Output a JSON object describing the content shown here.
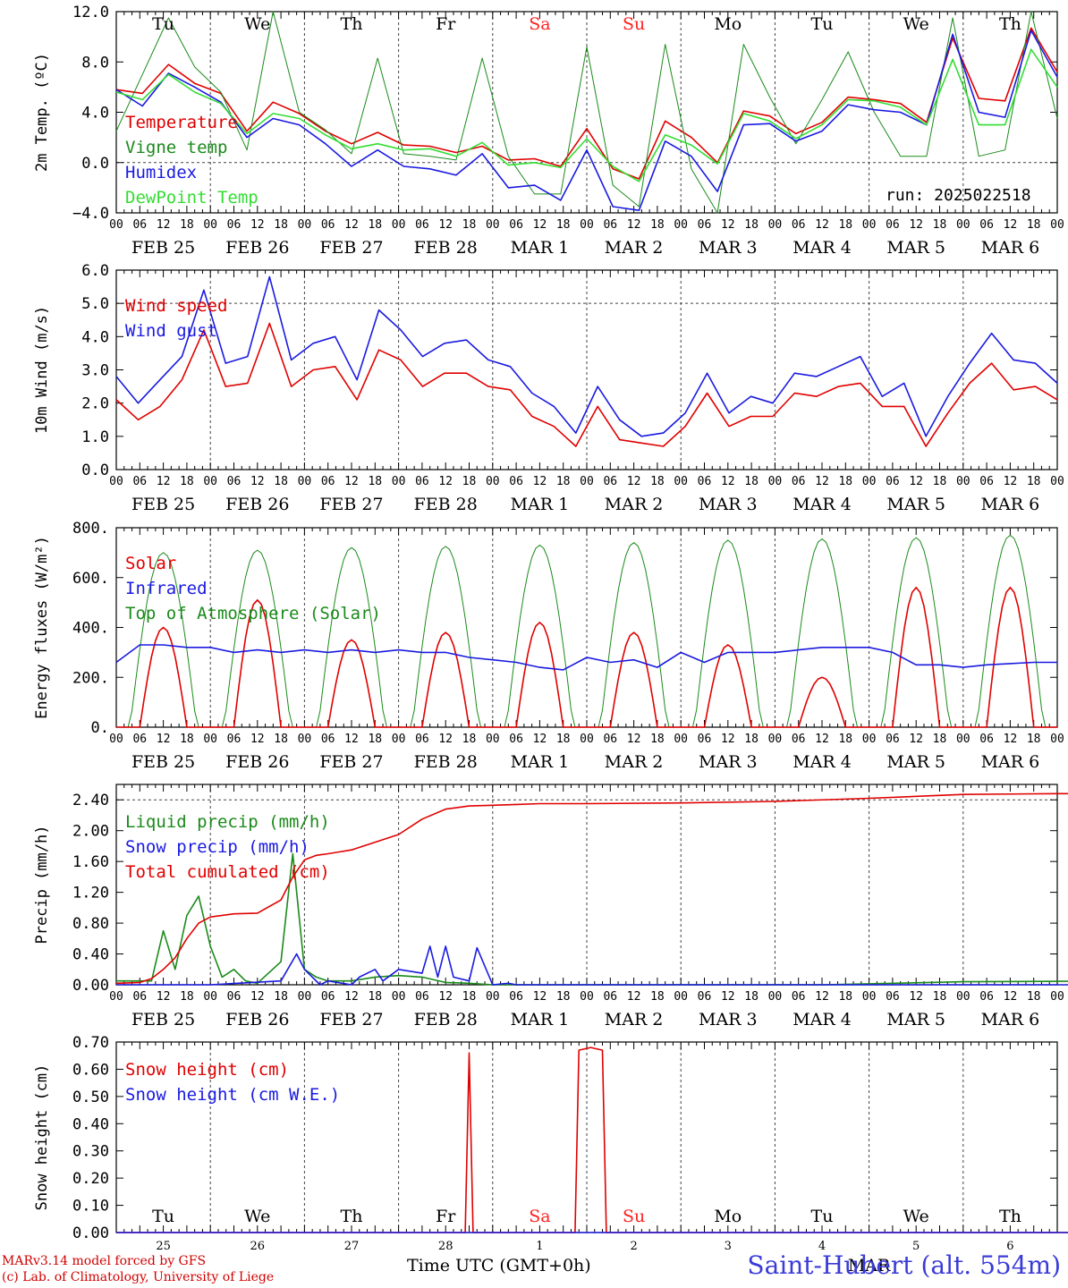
{
  "colors": {
    "red": "#e00000",
    "green": "#1a8a1a",
    "blue": "#1a1ae0",
    "lightgreen": "#33dd33",
    "weekend": "#ff2020",
    "station": "#3a3ad8"
  },
  "x_axis": {
    "hour_ticks": [
      "00",
      "06",
      "12",
      "18"
    ],
    "final_tick": "00",
    "dates": [
      "FEB 25",
      "FEB 26",
      "FEB 27",
      "FEB 28",
      "MAR  1",
      "MAR  2",
      "MAR  3",
      "MAR  4",
      "MAR  5",
      "MAR  6"
    ],
    "weekdays": [
      "Tu",
      "We",
      "Th",
      "Fr",
      "Sa",
      "Su",
      "Mo",
      "Tu",
      "We",
      "Th"
    ],
    "weekday_weekend": [
      false,
      false,
      false,
      false,
      true,
      true,
      false,
      false,
      false,
      false
    ],
    "day_numbers": [
      "25",
      "26",
      "27",
      "28",
      "1",
      "2",
      "3",
      "4",
      "5",
      "6"
    ],
    "month_label": "MAR",
    "title": "Time UTC (GMT+0h)"
  },
  "run_label": "run: 2025022518",
  "footer": {
    "line1": "MARv3.14 model forced by GFS",
    "line2": "(c) Lab. of Climatology, University of Liege",
    "station": "Saint-Hubert (alt. 554m)"
  },
  "chart_data": [
    {
      "type": "line",
      "ylabel": "2m Temp. (ºC)",
      "ylim": [
        -4,
        12
      ],
      "yticks": [
        "−4.0",
        "0.0",
        "4.0",
        "8.0",
        "12.0"
      ],
      "ytick_values": [
        -4,
        0,
        4,
        8,
        12
      ],
      "dashed_y": [
        0
      ],
      "x_unit": "hours since FEB 25 00 UTC, 6-hourly",
      "series": [
        {
          "name": "Temperature",
          "color": "red",
          "values": [
            5.8,
            5.5,
            7.8,
            6.3,
            5.5,
            2.5,
            4.8,
            3.9,
            2.5,
            1.5,
            2.4,
            1.4,
            1.3,
            0.8,
            1.3,
            0.2,
            0.3,
            -0.3,
            2.7,
            -0.5,
            -1.3,
            3.3,
            2.0,
            0.0,
            4.1,
            3.7,
            2.3,
            3.2,
            5.2,
            5.0,
            4.7,
            3.2,
            9.9,
            5.1,
            4.9,
            10.7,
            7.2
          ]
        },
        {
          "name": "Vigne temp",
          "color": "green",
          "values": [
            2.5,
            7.0,
            11.5,
            7.6,
            5.6,
            1.0,
            12.0,
            4.0,
            2.6,
            0.7,
            8.3,
            0.7,
            0.5,
            0.2,
            8.3,
            0.5,
            -2.5,
            -2.5,
            9.2,
            -1.8,
            -3.5,
            9.4,
            -0.5,
            -4.0,
            9.4,
            5.2,
            1.5,
            5.0,
            8.8,
            4.0,
            0.5,
            0.5,
            11.5,
            0.5,
            1.0,
            12.0,
            3.5
          ]
        },
        {
          "name": "Humidex",
          "color": "blue",
          "values": [
            5.8,
            4.5,
            7.1,
            6.0,
            4.8,
            2.0,
            3.5,
            3.0,
            1.5,
            -0.3,
            1.0,
            -0.3,
            -0.5,
            -1.0,
            0.7,
            -2.0,
            -1.8,
            -3.0,
            1.0,
            -3.5,
            -3.8,
            1.7,
            0.5,
            -2.3,
            3.0,
            3.1,
            1.7,
            2.5,
            4.6,
            4.2,
            4.0,
            3.0,
            10.2,
            4.0,
            3.6,
            10.5,
            6.8
          ]
        },
        {
          "name": "DewPoint Temp",
          "color": "lightgreen",
          "values": [
            5.6,
            5.0,
            7.0,
            5.6,
            4.7,
            2.3,
            3.9,
            3.5,
            2.2,
            1.1,
            1.5,
            1.0,
            1.1,
            0.5,
            1.6,
            -0.2,
            0.0,
            -0.4,
            1.9,
            -0.3,
            -1.5,
            2.2,
            1.4,
            -0.1,
            3.9,
            3.3,
            1.9,
            3.0,
            5.0,
            4.9,
            4.4,
            3.0,
            8.2,
            3.0,
            3.0,
            9.0,
            6.0
          ]
        }
      ],
      "legend": [
        "Temperature",
        "Vigne temp",
        "Humidex",
        "DewPoint Temp"
      ],
      "legend_colors": [
        "red",
        "green",
        "blue",
        "lightgreen"
      ]
    },
    {
      "type": "line",
      "ylabel": "10m Wind (m/s)",
      "ylim": [
        0,
        6
      ],
      "yticks": [
        "0.0",
        "1.0",
        "2.0",
        "3.0",
        "4.0",
        "5.0",
        "6.0"
      ],
      "ytick_values": [
        0,
        1,
        2,
        3,
        4,
        5,
        6
      ],
      "dashed_y": [
        5
      ],
      "x_unit": "hours since FEB 25 00 UTC, 6-hourly",
      "series": [
        {
          "name": "Wind speed",
          "color": "red",
          "values": [
            2.1,
            1.5,
            1.9,
            2.7,
            4.2,
            2.5,
            2.6,
            4.4,
            2.5,
            3.0,
            3.1,
            2.1,
            3.6,
            3.3,
            2.5,
            2.9,
            2.9,
            2.5,
            2.4,
            1.6,
            1.3,
            0.7,
            1.9,
            0.9,
            0.8,
            0.7,
            1.3,
            2.3,
            1.3,
            1.6,
            1.6,
            2.3,
            2.2,
            2.5,
            2.6,
            1.9,
            1.9,
            0.7,
            1.7,
            2.6,
            3.2,
            2.4,
            2.5,
            2.1
          ]
        },
        {
          "name": "Wind gust",
          "color": "blue",
          "values": [
            2.8,
            2.0,
            2.7,
            3.4,
            5.4,
            3.2,
            3.4,
            5.8,
            3.3,
            3.8,
            4.0,
            2.7,
            4.8,
            4.2,
            3.4,
            3.8,
            3.9,
            3.3,
            3.1,
            2.3,
            1.9,
            1.1,
            2.5,
            1.5,
            1.0,
            1.1,
            1.7,
            2.9,
            1.7,
            2.2,
            2.0,
            2.9,
            2.8,
            3.1,
            3.4,
            2.2,
            2.6,
            1.0,
            2.2,
            3.2,
            4.1,
            3.3,
            3.2,
            2.6
          ]
        }
      ],
      "legend": [
        "Wind speed",
        "Wind gust"
      ],
      "legend_colors": [
        "red",
        "blue"
      ]
    },
    {
      "type": "line",
      "ylabel": "Energy fluxes (W/m²)",
      "ylim": [
        0,
        800
      ],
      "yticks": [
        "0.",
        "200.",
        "400.",
        "600.",
        "800."
      ],
      "ytick_values": [
        0,
        200,
        400,
        600,
        800
      ],
      "dashed_y": [],
      "daily_peaks": {
        "solar": [
          400,
          510,
          350,
          380,
          420,
          380,
          330,
          200,
          560,
          560
        ],
        "top_of_atmosphere": [
          700,
          710,
          720,
          725,
          730,
          740,
          750,
          755,
          760,
          770
        ]
      },
      "infrared_6h": [
        260,
        330,
        330,
        320,
        320,
        300,
        310,
        300,
        310,
        300,
        310,
        300,
        310,
        300,
        300,
        280,
        270,
        260,
        240,
        230,
        280,
        260,
        270,
        240,
        300,
        260,
        300,
        300,
        300,
        310,
        320,
        320,
        320,
        300,
        250,
        250,
        240,
        250,
        255,
        260,
        260
      ],
      "legend": [
        "Solar",
        "Infrared",
        "Top of Atmosphere (Solar)"
      ],
      "legend_colors": [
        "red",
        "blue",
        "green"
      ]
    },
    {
      "type": "line",
      "ylabel": "Precip (mm/h)",
      "ylim": [
        0,
        2.6
      ],
      "yticks": [
        "0.00",
        "0.40",
        "0.80",
        "1.20",
        "1.60",
        "2.00",
        "2.40"
      ],
      "ytick_values": [
        0,
        0.4,
        0.8,
        1.2,
        1.6,
        2.0,
        2.4
      ],
      "dashed_y": [
        2.4
      ],
      "series": [
        {
          "name": "Liquid precip (mm/h)",
          "color": "green",
          "x": [
            0,
            6,
            9,
            12,
            15,
            18,
            21,
            24,
            27,
            30,
            33,
            36,
            42,
            45,
            48,
            51,
            54,
            60,
            66,
            72,
            78,
            84,
            90,
            96,
            102,
            108,
            114,
            120,
            180,
            216,
            260,
            300
          ],
          "values": [
            0.05,
            0.05,
            0.05,
            0.7,
            0.2,
            0.9,
            1.15,
            0.5,
            0.1,
            0.2,
            0.05,
            0.02,
            0.3,
            1.7,
            0.2,
            0.1,
            0.05,
            0.05,
            0.1,
            0.12,
            0.1,
            0.03,
            0.02,
            0.0,
            0.0,
            0.0,
            0.0,
            0.0,
            0.0,
            0.04,
            0.05,
            0.0
          ]
        },
        {
          "name": "Snow precip (mm/h)",
          "color": "blue",
          "x": [
            0,
            24,
            42,
            46,
            48,
            52,
            54,
            60,
            62,
            66,
            68,
            72,
            78,
            80,
            82,
            84,
            86,
            90,
            92,
            96,
            100,
            102,
            108,
            114,
            120,
            200,
            300
          ],
          "values": [
            0.0,
            0.0,
            0.05,
            0.4,
            0.2,
            0.0,
            0.05,
            0.0,
            0.1,
            0.2,
            0.05,
            0.2,
            0.15,
            0.5,
            0.1,
            0.5,
            0.1,
            0.05,
            0.48,
            0.0,
            0.02,
            0.0,
            0.0,
            0.0,
            0.0,
            0.0,
            0.0
          ]
        },
        {
          "name": "Total cumulated (cm)",
          "color": "red",
          "x": [
            0,
            6,
            9,
            12,
            15,
            18,
            21,
            24,
            30,
            36,
            42,
            45,
            48,
            51,
            54,
            60,
            66,
            72,
            78,
            84,
            90,
            96,
            102,
            108,
            120,
            144,
            168,
            192,
            216,
            240,
            264,
            288
          ],
          "values": [
            0.02,
            0.03,
            0.08,
            0.2,
            0.35,
            0.6,
            0.8,
            0.88,
            0.92,
            0.93,
            1.1,
            1.4,
            1.62,
            1.68,
            1.7,
            1.75,
            1.85,
            1.95,
            2.15,
            2.28,
            2.32,
            2.33,
            2.34,
            2.35,
            2.35,
            2.36,
            2.38,
            2.42,
            2.47,
            2.48,
            2.48,
            2.48
          ]
        }
      ],
      "legend": [
        "Liquid precip (mm/h)",
        "Snow precip (mm/h)",
        "Total cumulated (cm)"
      ],
      "legend_colors": [
        "green",
        "blue",
        "red"
      ]
    },
    {
      "type": "line",
      "ylabel": "Snow height (cm)",
      "ylim": [
        0,
        0.7
      ],
      "yticks": [
        "0.00",
        "0.10",
        "0.20",
        "0.30",
        "0.40",
        "0.50",
        "0.60",
        "0.70"
      ],
      "ytick_values": [
        0,
        0.1,
        0.2,
        0.3,
        0.4,
        0.5,
        0.6,
        0.7
      ],
      "dashed_y": [],
      "series": [
        {
          "name": "Snow height (cm)",
          "color": "red",
          "x": [
            0,
            89,
            90,
            91,
            117,
            118,
            121,
            124,
            125,
            264
          ],
          "values": [
            0,
            0,
            0.66,
            0,
            0,
            0.67,
            0.68,
            0.67,
            0,
            0
          ]
        },
        {
          "name": "Snow height (cm W.E.)",
          "color": "blue",
          "x": [
            0,
            264
          ],
          "values": [
            0,
            0
          ]
        }
      ],
      "legend": [
        "Snow height (cm)",
        "Snow height (cm W.E.)"
      ],
      "legend_colors": [
        "red",
        "blue"
      ]
    }
  ]
}
